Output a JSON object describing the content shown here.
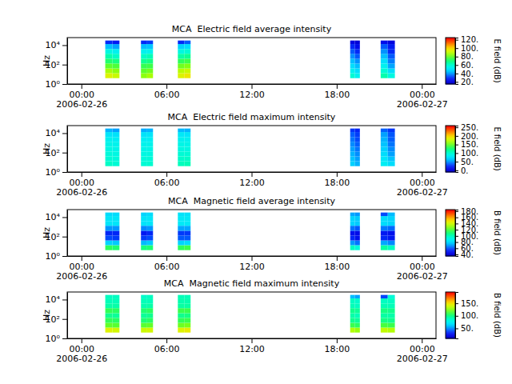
{
  "chart_data": [
    {
      "type": "heatmap",
      "title": "MCA  Electric field average intensity",
      "y_label": "Hz",
      "log": "y",
      "x": [
        "2006-02-26T01:41",
        "2006-02-26T02:11",
        "2006-02-26T04:12",
        "2006-02-26T04:38",
        "2006-02-26T06:48",
        "2006-02-26T07:15",
        "2006-02-26T18:57",
        "2006-02-26T19:17",
        "2006-02-26T21:06",
        "2006-02-26T21:36"
      ],
      "x_end": [
        "2006-02-26T02:11",
        "2006-02-26T02:41",
        "2006-02-26T04:38",
        "2006-02-26T05:03",
        "2006-02-26T07:15",
        "2006-02-26T07:42",
        "2006-02-26T19:17",
        "2006-02-26T19:38",
        "2006-02-26T21:36",
        "2006-02-26T22:06"
      ],
      "y_edges": [
        4,
        13,
        40,
        130,
        400,
        1300,
        4000,
        13000,
        30000
      ],
      "z": [
        [
          95,
          88,
          80,
          72,
          65,
          58,
          45,
          30
        ],
        [
          92,
          85,
          78,
          70,
          62,
          55,
          42,
          28
        ],
        [
          85,
          80,
          75,
          68,
          62,
          55,
          45,
          30
        ],
        [
          88,
          82,
          76,
          70,
          64,
          56,
          46,
          32
        ],
        [
          95,
          90,
          82,
          74,
          66,
          58,
          48,
          30
        ],
        [
          98,
          92,
          84,
          76,
          68,
          60,
          50,
          35
        ],
        [
          60,
          55,
          50,
          45,
          40,
          35,
          30,
          22
        ],
        [
          55,
          50,
          45,
          40,
          35,
          30,
          25,
          20
        ],
        [
          65,
          60,
          55,
          50,
          45,
          40,
          35,
          25
        ],
        [
          58,
          50,
          42,
          38,
          35,
          30,
          28,
          22
        ]
      ],
      "xlim": [
        "2006-02-25T23:00",
        "2006-02-27T01:00"
      ],
      "xticks": [
        {
          "value": "2006-02-26T00:00",
          "label": "00:00\n2006-02-26"
        },
        {
          "value": "2006-02-26T06:00",
          "label": "06:00"
        },
        {
          "value": "2006-02-26T12:00",
          "label": "12:00"
        },
        {
          "value": "2006-02-26T18:00",
          "label": "18:00"
        },
        {
          "value": "2006-02-27T00:00",
          "label": "00:00\n2006-02-27"
        }
      ],
      "ylim": [
        1,
        60000
      ],
      "yticks": [
        {
          "value": 1,
          "label": "10⁰"
        },
        {
          "value": 100,
          "label": "10²"
        },
        {
          "value": 10000,
          "label": "10⁴"
        }
      ],
      "colorbar": {
        "label": "E field (dB)",
        "lim": [
          15,
          125
        ],
        "ticks": [
          {
            "value": 20,
            "label": "20."
          },
          {
            "value": 40,
            "label": "40."
          },
          {
            "value": 60,
            "label": "60."
          },
          {
            "value": 80,
            "label": "80."
          },
          {
            "value": 100,
            "label": "100."
          },
          {
            "value": 120,
            "label": "120."
          }
        ]
      }
    },
    {
      "type": "heatmap",
      "title": "MCA  Electric field maximum intensity",
      "y_label": "Hz",
      "log": "y",
      "x": [
        "2006-02-26T01:41",
        "2006-02-26T02:11",
        "2006-02-26T04:12",
        "2006-02-26T04:38",
        "2006-02-26T06:48",
        "2006-02-26T07:15",
        "2006-02-26T18:57",
        "2006-02-26T19:17",
        "2006-02-26T21:06",
        "2006-02-26T21:36"
      ],
      "x_end": [
        "2006-02-26T02:11",
        "2006-02-26T02:41",
        "2006-02-26T04:38",
        "2006-02-26T05:03",
        "2006-02-26T07:15",
        "2006-02-26T07:42",
        "2006-02-26T19:17",
        "2006-02-26T19:38",
        "2006-02-26T21:36",
        "2006-02-26T22:06"
      ],
      "y_edges": [
        4,
        13,
        40,
        130,
        400,
        1300,
        4000,
        13000,
        30000
      ],
      "z": [
        [
          105,
          100,
          98,
          95,
          92,
          88,
          80,
          60
        ],
        [
          100,
          98,
          95,
          92,
          90,
          85,
          78,
          55
        ],
        [
          100,
          98,
          95,
          92,
          90,
          85,
          78,
          58
        ],
        [
          102,
          99,
          96,
          93,
          90,
          86,
          80,
          60
        ],
        [
          108,
          104,
          100,
          96,
          93,
          88,
          82,
          62
        ],
        [
          110,
          105,
          100,
          96,
          92,
          88,
          80,
          60
        ],
        [
          70,
          65,
          60,
          55,
          50,
          45,
          40,
          30
        ],
        [
          60,
          55,
          50,
          45,
          40,
          35,
          32,
          25
        ],
        [
          85,
          80,
          75,
          70,
          65,
          60,
          55,
          40
        ],
        [
          75,
          65,
          55,
          50,
          45,
          40,
          38,
          30
        ]
      ],
      "xlim": [
        "2006-02-25T23:00",
        "2006-02-27T01:00"
      ],
      "xticks": [
        {
          "value": "2006-02-26T00:00",
          "label": "00:00\n2006-02-26"
        },
        {
          "value": "2006-02-26T06:00",
          "label": "06:00"
        },
        {
          "value": "2006-02-26T12:00",
          "label": "12:00"
        },
        {
          "value": "2006-02-26T18:00",
          "label": "18:00"
        },
        {
          "value": "2006-02-27T00:00",
          "label": "00:00\n2006-02-27"
        }
      ],
      "ylim": [
        1,
        60000
      ],
      "yticks": [
        {
          "value": 1,
          "label": "10⁰"
        },
        {
          "value": 100,
          "label": "10²"
        },
        {
          "value": 10000,
          "label": "10⁴"
        }
      ],
      "colorbar": {
        "label": "E field (dB)",
        "lim": [
          -10,
          260
        ],
        "ticks": [
          {
            "value": 0,
            "label": "0."
          },
          {
            "value": 50,
            "label": "50."
          },
          {
            "value": 100,
            "label": "100."
          },
          {
            "value": 150,
            "label": "150."
          },
          {
            "value": 200,
            "label": "200."
          },
          {
            "value": 250,
            "label": "250."
          }
        ]
      }
    },
    {
      "type": "heatmap",
      "title": "MCA  Magnetic field average intensity",
      "y_label": "Hz",
      "log": "y",
      "x": [
        "2006-02-26T01:41",
        "2006-02-26T02:11",
        "2006-02-26T04:12",
        "2006-02-26T04:38",
        "2006-02-26T06:48",
        "2006-02-26T07:15",
        "2006-02-26T18:57",
        "2006-02-26T19:17",
        "2006-02-26T21:06",
        "2006-02-26T21:36"
      ],
      "x_end": [
        "2006-02-26T02:11",
        "2006-02-26T02:41",
        "2006-02-26T04:38",
        "2006-02-26T05:03",
        "2006-02-26T07:15",
        "2006-02-26T07:42",
        "2006-02-26T19:17",
        "2006-02-26T19:38",
        "2006-02-26T21:36",
        "2006-02-26T22:06"
      ],
      "y_edges": [
        4,
        13,
        40,
        130,
        400,
        1300,
        4000,
        13000,
        30000
      ],
      "z": [
        [
          115,
          80,
          60,
          55,
          70,
          85,
          85,
          82
        ],
        [
          112,
          78,
          58,
          55,
          70,
          85,
          85,
          82
        ],
        [
          110,
          75,
          58,
          52,
          68,
          84,
          84,
          80
        ],
        [
          112,
          78,
          60,
          55,
          70,
          85,
          85,
          82
        ],
        [
          115,
          80,
          62,
          58,
          72,
          86,
          86,
          84
        ],
        [
          118,
          82,
          62,
          58,
          72,
          86,
          86,
          84
        ],
        [
          100,
          70,
          55,
          50,
          65,
          80,
          80,
          72
        ],
        [
          95,
          65,
          50,
          48,
          62,
          78,
          78,
          70
        ],
        [
          105,
          72,
          55,
          52,
          66,
          82,
          82,
          60
        ],
        [
          100,
          68,
          52,
          50,
          64,
          80,
          80,
          75
        ]
      ],
      "xlim": [
        "2006-02-25T23:00",
        "2006-02-27T01:00"
      ],
      "xticks": [
        {
          "value": "2006-02-26T00:00",
          "label": "00:00\n2006-02-26"
        },
        {
          "value": "2006-02-26T06:00",
          "label": "06:00"
        },
        {
          "value": "2006-02-26T12:00",
          "label": "12:00"
        },
        {
          "value": "2006-02-26T18:00",
          "label": "18:00"
        },
        {
          "value": "2006-02-27T00:00",
          "label": "00:00\n2006-02-27"
        }
      ],
      "ylim": [
        1,
        60000
      ],
      "yticks": [
        {
          "value": 1,
          "label": "10⁰"
        },
        {
          "value": 100,
          "label": "10²"
        },
        {
          "value": 10000,
          "label": "10⁴"
        }
      ],
      "colorbar": {
        "label": "B field (dB)",
        "lim": [
          35,
          185
        ],
        "ticks": [
          {
            "value": 40,
            "label": "40."
          },
          {
            "value": 60,
            "label": "60."
          },
          {
            "value": 80,
            "label": "80."
          },
          {
            "value": 100,
            "label": "100."
          },
          {
            "value": 120,
            "label": "120."
          },
          {
            "value": 140,
            "label": "140."
          },
          {
            "value": 160,
            "label": "160."
          },
          {
            "value": 180,
            "label": "180."
          }
        ]
      }
    },
    {
      "type": "heatmap",
      "title": "MCA  Magnetic field maximum intensity",
      "y_label": "Hz",
      "log": "y",
      "x": [
        "2006-02-26T01:41",
        "2006-02-26T02:11",
        "2006-02-26T04:12",
        "2006-02-26T04:38",
        "2006-02-26T06:48",
        "2006-02-26T07:15",
        "2006-02-26T18:57",
        "2006-02-26T19:17",
        "2006-02-26T21:06",
        "2006-02-26T21:36"
      ],
      "x_end": [
        "2006-02-26T02:11",
        "2006-02-26T02:41",
        "2006-02-26T04:38",
        "2006-02-26T05:03",
        "2006-02-26T07:15",
        "2006-02-26T07:42",
        "2006-02-26T19:17",
        "2006-02-26T19:38",
        "2006-02-26T21:36",
        "2006-02-26T22:06"
      ],
      "y_edges": [
        4,
        13,
        40,
        130,
        400,
        1300,
        4000,
        13000,
        30000
      ],
      "z": [
        [
          145,
          120,
          110,
          100,
          110,
          95,
          92,
          90
        ],
        [
          142,
          118,
          108,
          98,
          108,
          95,
          92,
          90
        ],
        [
          140,
          118,
          105,
          98,
          105,
          94,
          92,
          88
        ],
        [
          142,
          120,
          108,
          100,
          108,
          95,
          92,
          90
        ],
        [
          145,
          122,
          110,
          100,
          112,
          96,
          94,
          92
        ],
        [
          148,
          124,
          112,
          102,
          112,
          96,
          94,
          92
        ],
        [
          135,
          112,
          100,
          95,
          100,
          92,
          90,
          60
        ],
        [
          130,
          108,
          98,
          92,
          98,
          90,
          88,
          55
        ],
        [
          138,
          115,
          102,
          96,
          102,
          93,
          90,
          40
        ],
        [
          135,
          112,
          100,
          95,
          100,
          92,
          90,
          85
        ]
      ],
      "xlim": [
        "2006-02-25T23:00",
        "2006-02-27T01:00"
      ],
      "xticks": [
        {
          "value": "2006-02-26T00:00",
          "label": "00:00\n2006-02-26"
        },
        {
          "value": "2006-02-26T06:00",
          "label": "06:00"
        },
        {
          "value": "2006-02-26T12:00",
          "label": "12:00"
        },
        {
          "value": "2006-02-26T18:00",
          "label": "18:00"
        },
        {
          "value": "2006-02-27T00:00",
          "label": "00:00\n2006-02-27"
        }
      ],
      "ylim": [
        1,
        60000
      ],
      "yticks": [
        {
          "value": 1,
          "label": "10⁰"
        },
        {
          "value": 100,
          "label": "10²"
        },
        {
          "value": 10000,
          "label": "10⁴"
        }
      ],
      "colorbar": {
        "label": "B field (dB)",
        "lim": [
          10,
          195
        ],
        "ticks": [
          {
            "value": 50,
            "label": "50."
          },
          {
            "value": 100,
            "label": "100."
          },
          {
            "value": 150,
            "label": "150."
          }
        ]
      }
    }
  ]
}
